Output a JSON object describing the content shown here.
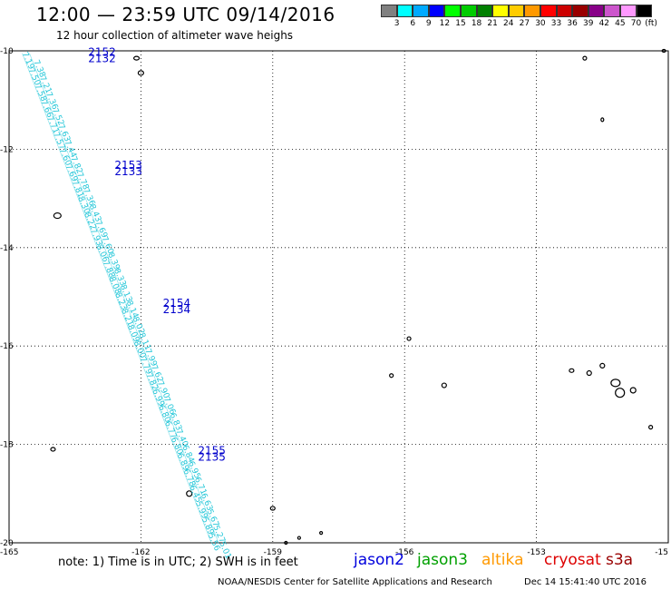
{
  "header": {
    "title": "12:00 — 23:59 UTC 09/14/2016",
    "subtitle": "12 hour collection of altimeter wave heighs"
  },
  "colorbar": {
    "colors": [
      "#808080",
      "#00ffff",
      "#00aaff",
      "#0000ff",
      "#00ff00",
      "#00cc00",
      "#008000",
      "#ffff00",
      "#ffcc00",
      "#ff9900",
      "#ff0000",
      "#cc0000",
      "#990000",
      "#880088",
      "#cc55cc",
      "#ff99ff",
      "#000000"
    ],
    "labels": [
      "3",
      "6",
      "9",
      "12",
      "15",
      "18",
      "21",
      "24",
      "27",
      "30",
      "33",
      "36",
      "39",
      "42",
      "45",
      "70"
    ],
    "unit": "(ft)"
  },
  "map": {
    "lon_ticks": [
      "-165",
      "-162",
      "-159",
      "-156",
      "-153",
      "-15"
    ],
    "lat_ticks": [
      "-10",
      "-12",
      "-14",
      "-16",
      "-18",
      "-20"
    ],
    "lon_range": [
      -165,
      -150
    ],
    "lat_range": [
      -20,
      -10
    ],
    "track_color": "#22c6d8",
    "pass_label_color": "#0000cc",
    "pass_labels": [
      {
        "top": "2152",
        "bottom": "2132",
        "lon": -163.2,
        "lat": -10.1
      },
      {
        "top": "2153",
        "bottom": "2133",
        "lon": -162.6,
        "lat": -12.4
      },
      {
        "top": "2154",
        "bottom": "2134",
        "lon": -161.5,
        "lat": -15.2
      },
      {
        "top": "2155",
        "bottom": "2135",
        "lon": -160.7,
        "lat": -18.2
      }
    ],
    "swh_values_ft": [
      "7.19",
      "7.38",
      "7.50",
      "7.21",
      "7.58",
      "7.36",
      "7.66",
      "7.52",
      "7.71",
      "7.63",
      "7.57",
      "7.44",
      "7.60",
      "7.82",
      "7.69",
      "7.78",
      "7.81",
      "7.36",
      "8.30",
      "8.43",
      "8.22",
      "7.69",
      "7.93",
      "7.60",
      "8.06",
      "8.39",
      "7.88",
      "8.33",
      "8.08",
      "8.13",
      "8.23",
      "8.14",
      "8.21",
      "8.02",
      "8.09",
      "8.11",
      "8.00",
      "7.99",
      "7.79",
      "7.62",
      "7.82",
      "7.90",
      "6.99",
      "7.06",
      "6.80",
      "6.83",
      "6.77",
      "7.40",
      "6.80",
      "6.84",
      "6.89",
      "6.95",
      "6.78",
      "6.71",
      "6.45",
      "6.63",
      "5.99",
      "5.67",
      "5.89",
      "5.27",
      "5.56",
      "5.01"
    ]
  },
  "note": "note: 1) Time is in UTC; 2) SWH is in feet",
  "legend": [
    {
      "name": "jason2",
      "color": "#0000dd"
    },
    {
      "name": "jason3",
      "color": "#00a000"
    },
    {
      "name": "altika",
      "color": "#ff9900"
    },
    {
      "name": "cryosat",
      "color": "#dd0000"
    },
    {
      "name": "s3a",
      "color": "#990000"
    }
  ],
  "credit": "NOAA/NESDIS Center for Satellite Applications and Research",
  "timestamp": "Dec 14 15:41:40 UTC 2016"
}
